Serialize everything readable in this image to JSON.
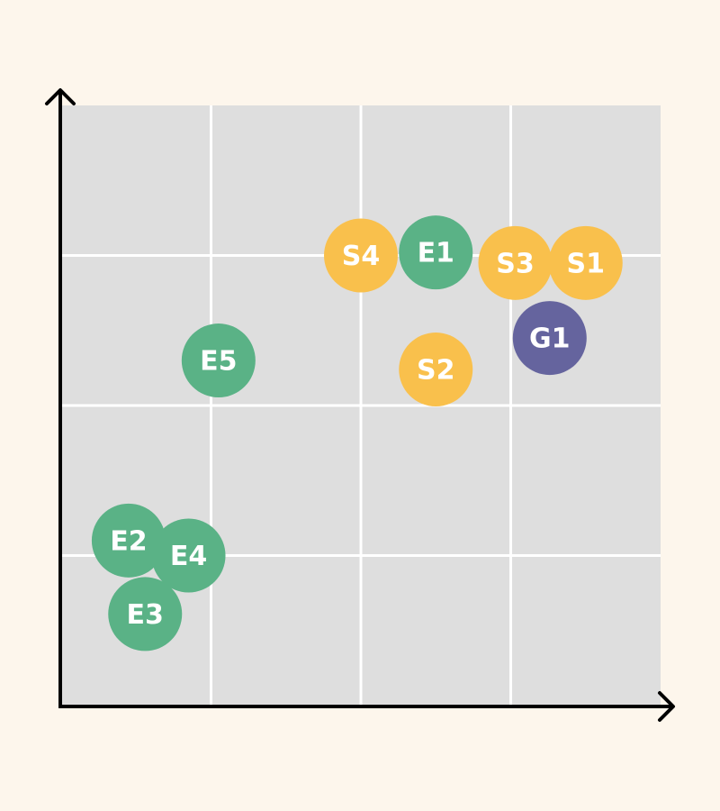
{
  "chart_data": {
    "type": "scatter",
    "title": "",
    "xlabel": "",
    "ylabel": "",
    "xlim": [
      0,
      4
    ],
    "ylim": [
      0,
      4
    ],
    "grid": true,
    "colors": {
      "background": "#fdf6ec",
      "plot_area": "#dedede",
      "grid": "#ffffff",
      "axis": "#000000",
      "label": "#ffffff"
    },
    "groups": [
      {
        "key": "E",
        "color": "#5ab286"
      },
      {
        "key": "S",
        "color": "#f9c04c"
      },
      {
        "key": "G",
        "color": "#65649e"
      }
    ],
    "points": [
      {
        "label": "S4",
        "group": "S",
        "x": 2.0,
        "y": 3.0
      },
      {
        "label": "E1",
        "group": "E",
        "x": 2.5,
        "y": 3.02
      },
      {
        "label": "S3",
        "group": "S",
        "x": 3.03,
        "y": 2.95
      },
      {
        "label": "S1",
        "group": "S",
        "x": 3.5,
        "y": 2.95
      },
      {
        "label": "G1",
        "group": "G",
        "x": 3.26,
        "y": 2.45
      },
      {
        "label": "E5",
        "group": "E",
        "x": 1.05,
        "y": 2.3
      },
      {
        "label": "S2",
        "group": "S",
        "x": 2.5,
        "y": 2.24
      },
      {
        "label": "E2",
        "group": "E",
        "x": 0.45,
        "y": 1.1
      },
      {
        "label": "E4",
        "group": "E",
        "x": 0.85,
        "y": 1.0
      },
      {
        "label": "E3",
        "group": "E",
        "x": 0.56,
        "y": 0.61
      }
    ]
  }
}
